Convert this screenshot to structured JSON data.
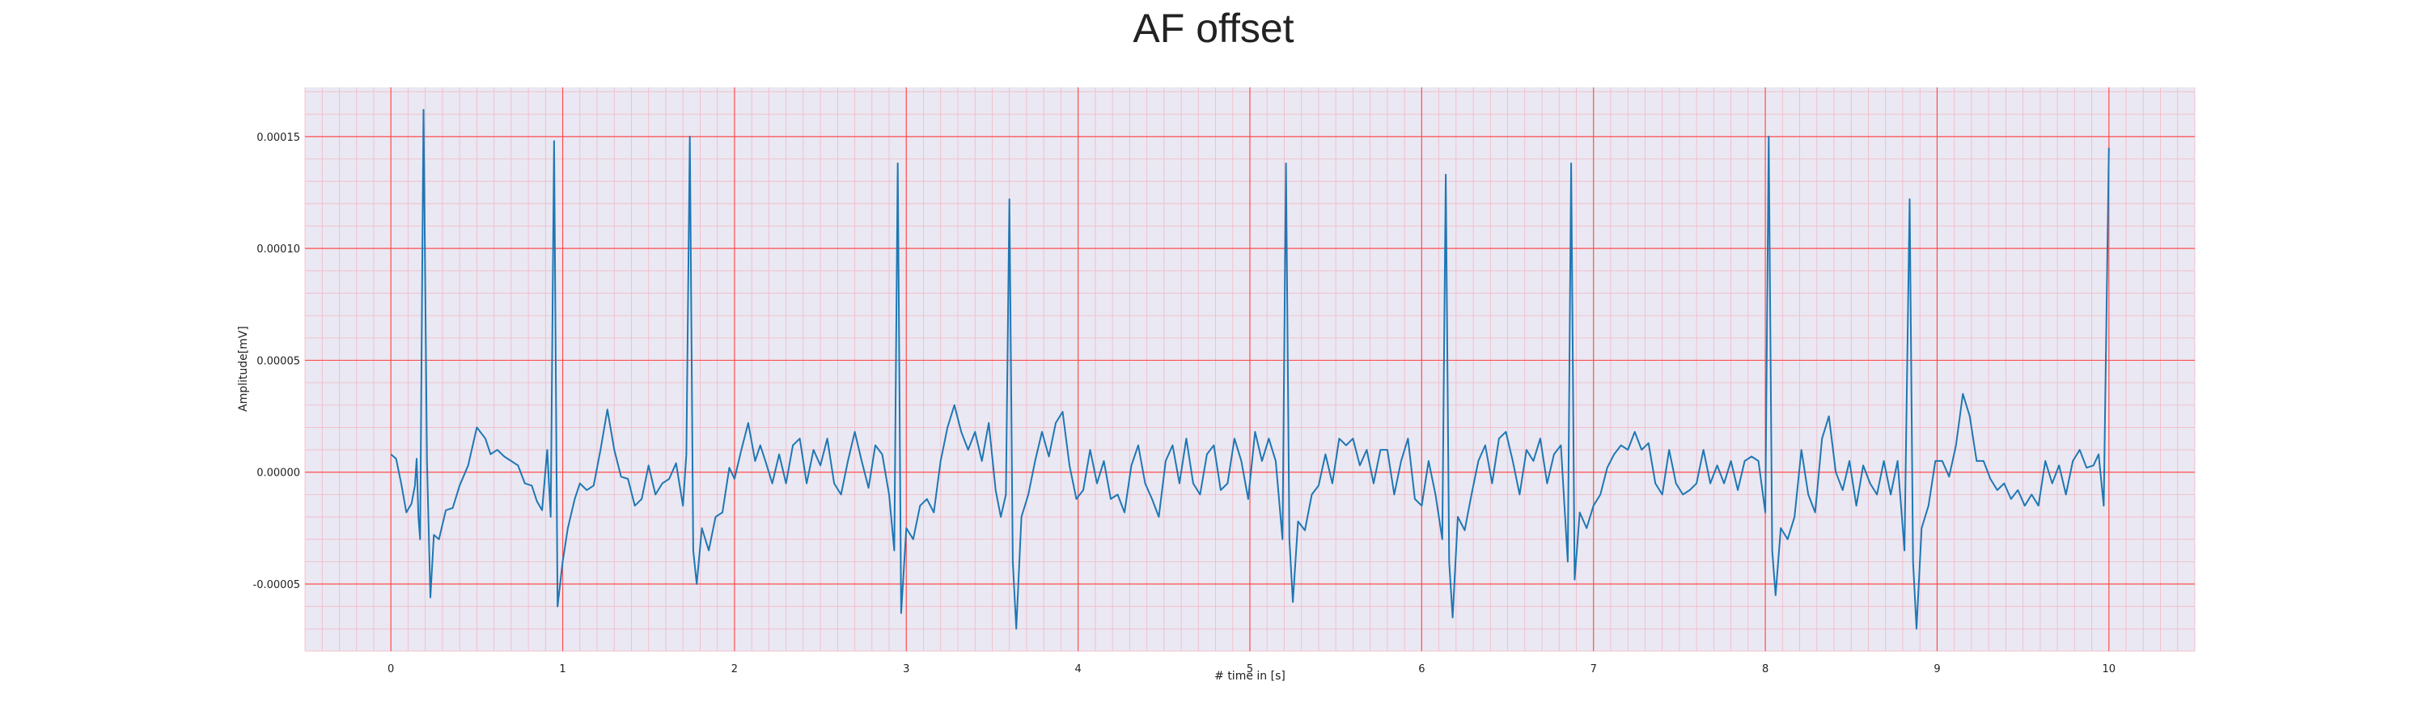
{
  "chart_data": {
    "type": "line",
    "title": "AF offset",
    "xlabel": "# time in [s]",
    "ylabel": "Amplitude[mV]",
    "xlim": [
      -0.5,
      10.5
    ],
    "ylim": [
      -8e-05,
      0.000172
    ],
    "x_ticks": [
      0,
      1,
      2,
      3,
      4,
      5,
      6,
      7,
      8,
      9,
      10
    ],
    "x_tick_labels": [
      "0",
      "1",
      "2",
      "3",
      "4",
      "5",
      "6",
      "7",
      "8",
      "9",
      "10"
    ],
    "y_ticks": [
      -5e-05,
      0.0,
      5e-05,
      0.0001,
      0.00015
    ],
    "y_tick_labels": [
      "-0.00005",
      "0.00000",
      "0.00005",
      "0.00010",
      "0.00015"
    ],
    "grid": true,
    "minor_grid": true,
    "colors": {
      "line": "#1f77b4",
      "major_grid": "#ff4d4d",
      "minor_grid": "#f2b8c6",
      "plot_bg": "#eae8f2"
    },
    "series": [
      {
        "values": [
          [
            0.0,
            8e-06
          ],
          [
            0.03,
            6e-06
          ],
          [
            0.06,
            -5e-06
          ],
          [
            0.09,
            -1.8e-05
          ],
          [
            0.12,
            -1.4e-05
          ],
          [
            0.14,
            -6e-06
          ],
          [
            0.15,
            6e-06
          ],
          [
            0.16,
            -2e-05
          ],
          [
            0.17,
            -3e-05
          ],
          [
            0.19,
            0.000162
          ],
          [
            0.21,
            5e-06
          ],
          [
            0.23,
            -5.6e-05
          ],
          [
            0.25,
            -2.8e-05
          ],
          [
            0.28,
            -3e-05
          ],
          [
            0.32,
            -1.7e-05
          ],
          [
            0.36,
            -1.6e-05
          ],
          [
            0.4,
            -6e-06
          ],
          [
            0.45,
            3e-06
          ],
          [
            0.5,
            2e-05
          ],
          [
            0.55,
            1.5e-05
          ],
          [
            0.58,
            8e-06
          ],
          [
            0.62,
            1e-05
          ],
          [
            0.66,
            7e-06
          ],
          [
            0.7,
            5e-06
          ],
          [
            0.74,
            3e-06
          ],
          [
            0.78,
            -5e-06
          ],
          [
            0.82,
            -6e-06
          ],
          [
            0.85,
            -1.3e-05
          ],
          [
            0.88,
            -1.7e-05
          ],
          [
            0.91,
            1e-05
          ],
          [
            0.93,
            -2e-05
          ],
          [
            0.95,
            0.000148
          ],
          [
            0.97,
            -6e-05
          ],
          [
            1.0,
            -4e-05
          ],
          [
            1.03,
            -2.5e-05
          ],
          [
            1.07,
            -1.2e-05
          ],
          [
            1.1,
            -5e-06
          ],
          [
            1.14,
            -8e-06
          ],
          [
            1.18,
            -6e-06
          ],
          [
            1.22,
            1e-05
          ],
          [
            1.26,
            2.8e-05
          ],
          [
            1.3,
            1e-05
          ],
          [
            1.34,
            -2e-06
          ],
          [
            1.38,
            -3e-06
          ],
          [
            1.42,
            -1.5e-05
          ],
          [
            1.46,
            -1.2e-05
          ],
          [
            1.5,
            3e-06
          ],
          [
            1.54,
            -1e-05
          ],
          [
            1.58,
            -5e-06
          ],
          [
            1.62,
            -3e-06
          ],
          [
            1.66,
            4e-06
          ],
          [
            1.7,
            -1.5e-05
          ],
          [
            1.72,
            8e-06
          ],
          [
            1.74,
            0.00015
          ],
          [
            1.76,
            -3.5e-05
          ],
          [
            1.78,
            -5e-05
          ],
          [
            1.81,
            -2.5e-05
          ],
          [
            1.85,
            -3.5e-05
          ],
          [
            1.89,
            -2e-05
          ],
          [
            1.93,
            -1.8e-05
          ],
          [
            1.97,
            2e-06
          ],
          [
            2.0,
            -3e-06
          ],
          [
            2.04,
            1e-05
          ],
          [
            2.08,
            2.2e-05
          ],
          [
            2.12,
            5e-06
          ],
          [
            2.15,
            1.2e-05
          ],
          [
            2.18,
            5e-06
          ],
          [
            2.22,
            -5e-06
          ],
          [
            2.26,
            8e-06
          ],
          [
            2.3,
            -5e-06
          ],
          [
            2.34,
            1.2e-05
          ],
          [
            2.38,
            1.5e-05
          ],
          [
            2.42,
            -5e-06
          ],
          [
            2.46,
            1e-05
          ],
          [
            2.5,
            3e-06
          ],
          [
            2.54,
            1.5e-05
          ],
          [
            2.58,
            -5e-06
          ],
          [
            2.62,
            -1e-05
          ],
          [
            2.66,
            5e-06
          ],
          [
            2.7,
            1.8e-05
          ],
          [
            2.74,
            5e-06
          ],
          [
            2.78,
            -7e-06
          ],
          [
            2.82,
            1.2e-05
          ],
          [
            2.86,
            8e-06
          ],
          [
            2.9,
            -1e-05
          ],
          [
            2.93,
            -3.5e-05
          ],
          [
            2.95,
            0.000138
          ],
          [
            2.97,
            -6.3e-05
          ],
          [
            3.0,
            -2.5e-05
          ],
          [
            3.04,
            -3e-05
          ],
          [
            3.08,
            -1.5e-05
          ],
          [
            3.12,
            -1.2e-05
          ],
          [
            3.16,
            -1.8e-05
          ],
          [
            3.2,
            5e-06
          ],
          [
            3.24,
            2e-05
          ],
          [
            3.28,
            3e-05
          ],
          [
            3.32,
            1.8e-05
          ],
          [
            3.36,
            1e-05
          ],
          [
            3.4,
            1.8e-05
          ],
          [
            3.44,
            5e-06
          ],
          [
            3.48,
            2.2e-05
          ],
          [
            3.52,
            -8e-06
          ],
          [
            3.55,
            -2e-05
          ],
          [
            3.58,
            -1e-05
          ],
          [
            3.6,
            0.000122
          ],
          [
            3.62,
            -4e-05
          ],
          [
            3.64,
            -7e-05
          ],
          [
            3.67,
            -2e-05
          ],
          [
            3.71,
            -1e-05
          ],
          [
            3.75,
            5e-06
          ],
          [
            3.79,
            1.8e-05
          ],
          [
            3.83,
            7e-06
          ],
          [
            3.87,
            2.2e-05
          ],
          [
            3.91,
            2.7e-05
          ],
          [
            3.95,
            3e-06
          ],
          [
            3.99,
            -1.2e-05
          ],
          [
            4.03,
            -8e-06
          ],
          [
            4.07,
            1e-05
          ],
          [
            4.11,
            -5e-06
          ],
          [
            4.15,
            5e-06
          ],
          [
            4.19,
            -1.2e-05
          ],
          [
            4.23,
            -1e-05
          ],
          [
            4.27,
            -1.8e-05
          ],
          [
            4.31,
            3e-06
          ],
          [
            4.35,
            1.2e-05
          ],
          [
            4.39,
            -5e-06
          ],
          [
            4.43,
            -1.2e-05
          ],
          [
            4.47,
            -2e-05
          ],
          [
            4.51,
            5e-06
          ],
          [
            4.55,
            1.2e-05
          ],
          [
            4.59,
            -5e-06
          ],
          [
            4.63,
            1.5e-05
          ],
          [
            4.67,
            -5e-06
          ],
          [
            4.71,
            -1e-05
          ],
          [
            4.75,
            8e-06
          ],
          [
            4.79,
            1.2e-05
          ],
          [
            4.83,
            -8e-06
          ],
          [
            4.87,
            -5e-06
          ],
          [
            4.91,
            1.5e-05
          ],
          [
            4.95,
            5e-06
          ],
          [
            4.99,
            -1.2e-05
          ],
          [
            5.03,
            1.8e-05
          ],
          [
            5.07,
            5e-06
          ],
          [
            5.11,
            1.5e-05
          ],
          [
            5.15,
            5e-06
          ],
          [
            5.19,
            -3e-05
          ],
          [
            5.21,
            0.000138
          ],
          [
            5.23,
            -3e-05
          ],
          [
            5.25,
            -5.8e-05
          ],
          [
            5.28,
            -2.2e-05
          ],
          [
            5.32,
            -2.6e-05
          ],
          [
            5.36,
            -1e-05
          ],
          [
            5.4,
            -6e-06
          ],
          [
            5.44,
            8e-06
          ],
          [
            5.48,
            -5e-06
          ],
          [
            5.52,
            1.5e-05
          ],
          [
            5.56,
            1.2e-05
          ],
          [
            5.6,
            1.5e-05
          ],
          [
            5.64,
            3e-06
          ],
          [
            5.68,
            1e-05
          ],
          [
            5.72,
            -5e-06
          ],
          [
            5.76,
            1e-05
          ],
          [
            5.8,
            1e-05
          ],
          [
            5.84,
            -1e-05
          ],
          [
            5.88,
            5e-06
          ],
          [
            5.92,
            1.5e-05
          ],
          [
            5.96,
            -1.2e-05
          ],
          [
            6.0,
            -1.5e-05
          ],
          [
            6.04,
            5e-06
          ],
          [
            6.08,
            -1e-05
          ],
          [
            6.12,
            -3e-05
          ],
          [
            6.14,
            0.000133
          ],
          [
            6.16,
            -4e-05
          ],
          [
            6.18,
            -6.5e-05
          ],
          [
            6.21,
            -2e-05
          ],
          [
            6.25,
            -2.6e-05
          ],
          [
            6.29,
            -1e-05
          ],
          [
            6.33,
            5e-06
          ],
          [
            6.37,
            1.2e-05
          ],
          [
            6.41,
            -5e-06
          ],
          [
            6.45,
            1.5e-05
          ],
          [
            6.49,
            1.8e-05
          ],
          [
            6.53,
            5e-06
          ],
          [
            6.57,
            -1e-05
          ],
          [
            6.61,
            1e-05
          ],
          [
            6.65,
            5e-06
          ],
          [
            6.69,
            1.5e-05
          ],
          [
            6.73,
            -5e-06
          ],
          [
            6.77,
            8e-06
          ],
          [
            6.81,
            1.2e-05
          ],
          [
            6.85,
            -4e-05
          ],
          [
            6.87,
            0.000138
          ],
          [
            6.89,
            -4.8e-05
          ],
          [
            6.92,
            -1.8e-05
          ],
          [
            6.96,
            -2.5e-05
          ],
          [
            7.0,
            -1.5e-05
          ],
          [
            7.04,
            -1e-05
          ],
          [
            7.08,
            2e-06
          ],
          [
            7.12,
            8e-06
          ],
          [
            7.16,
            1.2e-05
          ],
          [
            7.2,
            1e-05
          ],
          [
            7.24,
            1.8e-05
          ],
          [
            7.28,
            1e-05
          ],
          [
            7.32,
            1.3e-05
          ],
          [
            7.36,
            -5e-06
          ],
          [
            7.4,
            -1e-05
          ],
          [
            7.44,
            1e-05
          ],
          [
            7.48,
            -5e-06
          ],
          [
            7.52,
            -1e-05
          ],
          [
            7.56,
            -8e-06
          ],
          [
            7.6,
            -5e-06
          ],
          [
            7.64,
            1e-05
          ],
          [
            7.68,
            -5e-06
          ],
          [
            7.72,
            3e-06
          ],
          [
            7.76,
            -5e-06
          ],
          [
            7.8,
            5e-06
          ],
          [
            7.84,
            -8e-06
          ],
          [
            7.88,
            5e-06
          ],
          [
            7.92,
            7e-06
          ],
          [
            7.96,
            5e-06
          ],
          [
            8.0,
            -1.8e-05
          ],
          [
            8.02,
            0.00015
          ],
          [
            8.04,
            -3.5e-05
          ],
          [
            8.06,
            -5.5e-05
          ],
          [
            8.09,
            -2.5e-05
          ],
          [
            8.13,
            -3e-05
          ],
          [
            8.17,
            -2e-05
          ],
          [
            8.21,
            1e-05
          ],
          [
            8.25,
            -1e-05
          ],
          [
            8.29,
            -1.8e-05
          ],
          [
            8.33,
            1.5e-05
          ],
          [
            8.37,
            2.5e-05
          ],
          [
            8.41,
            0.0
          ],
          [
            8.45,
            -8e-06
          ],
          [
            8.49,
            5e-06
          ],
          [
            8.53,
            -1.5e-05
          ],
          [
            8.57,
            3e-06
          ],
          [
            8.61,
            -5e-06
          ],
          [
            8.65,
            -1e-05
          ],
          [
            8.69,
            5e-06
          ],
          [
            8.73,
            -1e-05
          ],
          [
            8.77,
            5e-06
          ],
          [
            8.81,
            -3.5e-05
          ],
          [
            8.84,
            0.000122
          ],
          [
            8.86,
            -4e-05
          ],
          [
            8.88,
            -7e-05
          ],
          [
            8.91,
            -2.5e-05
          ],
          [
            8.95,
            -1.5e-05
          ],
          [
            8.99,
            5e-06
          ],
          [
            9.03,
            5e-06
          ],
          [
            9.07,
            -2e-06
          ],
          [
            9.11,
            1.2e-05
          ],
          [
            9.15,
            3.5e-05
          ],
          [
            9.19,
            2.5e-05
          ],
          [
            9.23,
            5e-06
          ],
          [
            9.27,
            5e-06
          ],
          [
            9.31,
            -3e-06
          ],
          [
            9.35,
            -8e-06
          ],
          [
            9.39,
            -5e-06
          ],
          [
            9.43,
            -1.2e-05
          ],
          [
            9.47,
            -8e-06
          ],
          [
            9.51,
            -1.5e-05
          ],
          [
            9.55,
            -1e-05
          ],
          [
            9.59,
            -1.5e-05
          ],
          [
            9.63,
            5e-06
          ],
          [
            9.67,
            -5e-06
          ],
          [
            9.71,
            3e-06
          ],
          [
            9.75,
            -1e-05
          ],
          [
            9.79,
            5e-06
          ],
          [
            9.83,
            1e-05
          ],
          [
            9.87,
            2e-06
          ],
          [
            9.91,
            3e-06
          ],
          [
            9.94,
            8e-06
          ],
          [
            9.97,
            -1.5e-05
          ],
          [
            10.0,
            0.000145
          ]
        ]
      }
    ]
  }
}
